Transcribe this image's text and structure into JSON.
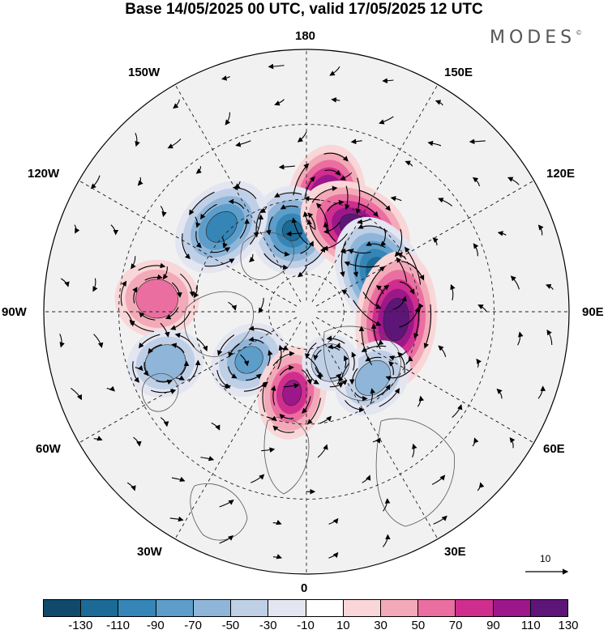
{
  "title": "Base 14/05/2025 00 UTC, valid 17/05/2025 12 UTC",
  "brand": "MODES",
  "brand_mark": "©",
  "lon_labels": {
    "top": "180",
    "bottom": "0",
    "left": "90W",
    "right": "90E",
    "w150": "150W",
    "e150": "150E",
    "w120": "120W",
    "e120": "120E",
    "w60": "60W",
    "e60": "60E",
    "w30": "30W",
    "e30": "30E"
  },
  "reference_vector": {
    "label": "10"
  },
  "colorbar": {
    "ticks": [
      "-130",
      "-110",
      "-90",
      "-70",
      "-50",
      "-30",
      "-10",
      "10",
      "30",
      "50",
      "70",
      "90",
      "110",
      "130"
    ],
    "colors": [
      "#0f4a6b",
      "#1c6a96",
      "#3585b7",
      "#5c9dc9",
      "#8fb6d9",
      "#bfcfe6",
      "#e3e5f0",
      "#ffffff",
      "#f9d6d8",
      "#f3aab8",
      "#ea6fa0",
      "#cf2e8e",
      "#9c178a",
      "#5d1678"
    ]
  },
  "anomaly_cells": [
    {
      "lon": 170,
      "colat": 30,
      "value": 130,
      "rx": 48,
      "ry": 70
    },
    {
      "lon": -170,
      "colat": 22,
      "value": -110,
      "rx": 52,
      "ry": 55
    },
    {
      "lon": 150,
      "colat": 26,
      "value": 120,
      "rx": 72,
      "ry": 52
    },
    {
      "lon": -135,
      "colat": 32,
      "value": -100,
      "rx": 65,
      "ry": 48
    },
    {
      "lon": 115,
      "colat": 22,
      "value": -130,
      "rx": 78,
      "ry": 52
    },
    {
      "lon": 85,
      "colat": 24,
      "value": 125,
      "rx": 85,
      "ry": 50
    },
    {
      "lon": -95,
      "colat": 40,
      "value": 60,
      "rx": 48,
      "ry": 52
    },
    {
      "lon": -50,
      "colat": 20,
      "value": -75,
      "rx": 42,
      "ry": 50
    },
    {
      "lon": -10,
      "colat": 22,
      "value": 90,
      "rx": 42,
      "ry": 58
    },
    {
      "lon": -70,
      "colat": 40,
      "value": -65,
      "rx": 42,
      "ry": 48
    },
    {
      "lon": 45,
      "colat": 25,
      "value": -55,
      "rx": 52,
      "ry": 40
    },
    {
      "lon": 25,
      "colat": 15,
      "value": -40,
      "rx": 35,
      "ry": 35
    }
  ]
}
